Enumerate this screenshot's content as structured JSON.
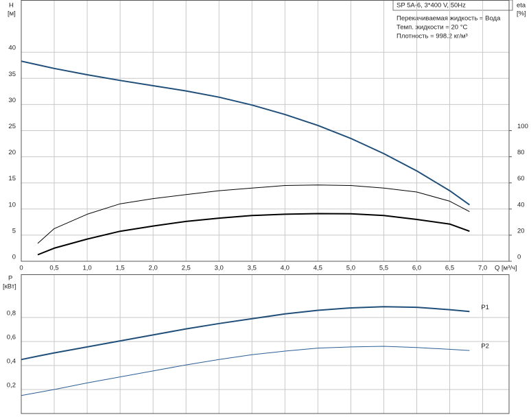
{
  "chart_data": [
    {
      "type": "line",
      "title": "SP 5A-6, 3*400 V, 50Hz",
      "annotations": [
        "Перекачиваемая жидкость = Вода",
        "Темп. жидкости = 20 °C",
        "Плотность = 998.2 кг/м³"
      ],
      "ylabel": "H",
      "yunit": "[м]",
      "y2label": "eta",
      "y2unit": "[%]",
      "xlabel": "Q [м³/ч]",
      "x": [
        0,
        0.25,
        0.5,
        1,
        1.5,
        2,
        2.5,
        3,
        3.5,
        4,
        4.5,
        5,
        5.5,
        6,
        6.5,
        6.8
      ],
      "series": [
        {
          "color": "#1f4e79",
          "values": [
            38.3,
            37.6,
            36.9,
            35.7,
            34.6,
            33.6,
            32.6,
            31.4,
            29.9,
            28.1,
            26.0,
            23.5,
            20.6,
            17.3,
            13.5,
            10.8
          ]
        },
        {
          "color": "#000000",
          "axis": "y2",
          "values": [
            null,
            13.7,
            25,
            36,
            44,
            48,
            51,
            54,
            56,
            58,
            58.4,
            58,
            56,
            53,
            46,
            38
          ]
        },
        {
          "color": "#000000",
          "axis": "y2",
          "values": [
            null,
            5,
            10,
            17,
            23,
            27,
            30.5,
            33,
            35,
            36,
            36.5,
            36.3,
            35,
            32,
            28.5,
            23
          ]
        }
      ],
      "xlim": [
        0,
        7.4
      ],
      "xticks": [
        0,
        {
          "value": 0.5,
          "label": "0,5"
        },
        {
          "value": 1,
          "label": "1,0"
        },
        {
          "value": 1.5,
          "label": "1,5"
        },
        {
          "value": 2,
          "label": "2,0"
        },
        {
          "value": 2.5,
          "label": "2,5"
        },
        {
          "value": 3,
          "label": "3,0"
        },
        {
          "value": 3.5,
          "label": "3,5"
        },
        {
          "value": 4,
          "label": "4,0"
        },
        {
          "value": 4.5,
          "label": "4,5"
        },
        {
          "value": 5,
          "label": "5,0"
        },
        {
          "value": 5.5,
          "label": "5,5"
        },
        {
          "value": 6,
          "label": "6,0"
        },
        {
          "value": 6.5,
          "label": "6,5"
        },
        {
          "value": 7,
          "label": "7,0"
        }
      ],
      "ylim": [
        0,
        50
      ],
      "yticks": [
        0,
        5,
        10,
        15,
        20,
        25,
        30,
        35,
        40
      ],
      "y2lim": [
        0,
        200
      ],
      "y2ticks": [
        0,
        20,
        40,
        60,
        80,
        100
      ],
      "grid": true
    },
    {
      "type": "line",
      "ylabel": "P",
      "yunit": "[кВт]",
      "x": [
        0,
        0.25,
        0.5,
        1,
        1.5,
        2,
        2.5,
        3,
        3.5,
        4,
        4.5,
        5,
        5.5,
        6,
        6.5,
        6.8
      ],
      "series": [
        {
          "name": "P1",
          "color": "#1f4e79",
          "width": 2,
          "values": [
            0.45,
            0.478,
            0.505,
            0.555,
            0.605,
            0.655,
            0.705,
            0.75,
            0.79,
            0.83,
            0.86,
            0.88,
            0.89,
            0.885,
            0.865,
            0.85
          ]
        },
        {
          "name": "P2",
          "color": "#2a5d95",
          "width": 1,
          "values": [
            0.15,
            0.175,
            0.2,
            0.255,
            0.305,
            0.355,
            0.405,
            0.45,
            0.49,
            0.52,
            0.545,
            0.555,
            0.56,
            0.55,
            0.535,
            0.525
          ]
        }
      ],
      "xlim": [
        0,
        7.4
      ],
      "xticks": [
        0,
        0.5,
        1,
        1.5,
        2,
        2.5,
        3,
        3.5,
        4,
        4.5,
        5,
        5.5,
        6,
        6.5,
        7
      ],
      "ylim": [
        0,
        1.16
      ],
      "yticks": [
        {
          "value": 0.2,
          "label": "0,2"
        },
        {
          "value": 0.4,
          "label": "0,4"
        },
        {
          "value": 0.6,
          "label": "0,6"
        },
        {
          "value": 0.8,
          "label": "0,8"
        }
      ],
      "grid": true
    }
  ]
}
